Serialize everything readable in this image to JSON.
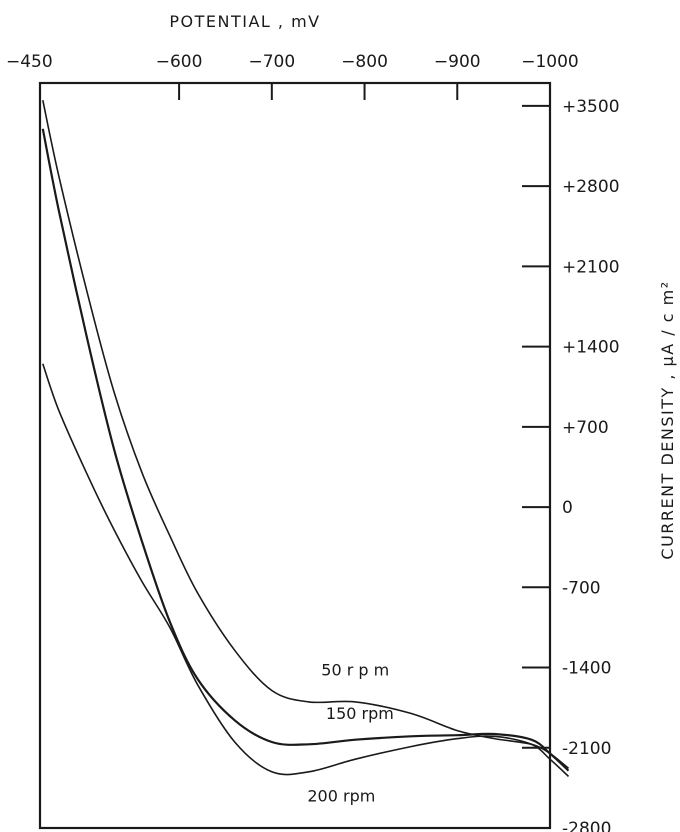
{
  "chart_data": {
    "type": "line",
    "xlabel": "POTENTIAL , mV",
    "ylabel": "CURRENT DENSITY , µA / c m²",
    "x_ticks": [
      {
        "value": -450,
        "label": "−450"
      },
      {
        "value": -600,
        "label": "−600"
      },
      {
        "value": -700,
        "label": "−700"
      },
      {
        "value": -800,
        "label": "−800"
      },
      {
        "value": -900,
        "label": "−900"
      },
      {
        "value": -1000,
        "label": "−1000"
      }
    ],
    "y_ticks": [
      {
        "value": 3500,
        "label": "+3500"
      },
      {
        "value": 2800,
        "label": "+2800"
      },
      {
        "value": 2100,
        "label": "+2100"
      },
      {
        "value": 1400,
        "label": "+1400"
      },
      {
        "value": 700,
        "label": "+700"
      },
      {
        "value": 0,
        "label": "0"
      },
      {
        "value": -700,
        "label": "-700"
      },
      {
        "value": -1400,
        "label": "-1400"
      },
      {
        "value": -2100,
        "label": "-2100"
      },
      {
        "value": -2800,
        "label": "-2800"
      }
    ],
    "xlim": [
      -450,
      -1000
    ],
    "ylim": [
      -2800,
      3700
    ],
    "grid": false,
    "legend": "none",
    "series": [
      {
        "name": "50 rpm",
        "points": [
          [
            -453,
            3550
          ],
          [
            -470,
            2900
          ],
          [
            -500,
            1900
          ],
          [
            -530,
            1000
          ],
          [
            -560,
            300
          ],
          [
            -590,
            -250
          ],
          [
            -620,
            -750
          ],
          [
            -660,
            -1250
          ],
          [
            -700,
            -1600
          ],
          [
            -740,
            -1700
          ],
          [
            -790,
            -1700
          ],
          [
            -850,
            -1800
          ],
          [
            -900,
            -1950
          ],
          [
            -940,
            -2020
          ],
          [
            -980,
            -2070
          ],
          [
            -1000,
            -2150
          ],
          [
            -1020,
            -2280
          ]
        ]
      },
      {
        "name": "150 rpm",
        "points": [
          [
            -453,
            3300
          ],
          [
            -470,
            2600
          ],
          [
            -500,
            1500
          ],
          [
            -530,
            500
          ],
          [
            -560,
            -300
          ],
          [
            -590,
            -1000
          ],
          [
            -620,
            -1500
          ],
          [
            -660,
            -1860
          ],
          [
            -700,
            -2050
          ],
          [
            -740,
            -2070
          ],
          [
            -790,
            -2030
          ],
          [
            -850,
            -2000
          ],
          [
            -900,
            -1990
          ],
          [
            -940,
            -1980
          ],
          [
            -980,
            -2030
          ],
          [
            -1000,
            -2150
          ],
          [
            -1020,
            -2300
          ]
        ]
      },
      {
        "name": "200 rpm",
        "points": [
          [
            -453,
            1250
          ],
          [
            -470,
            850
          ],
          [
            -500,
            300
          ],
          [
            -530,
            -200
          ],
          [
            -560,
            -650
          ],
          [
            -590,
            -1050
          ],
          [
            -620,
            -1550
          ],
          [
            -660,
            -2050
          ],
          [
            -700,
            -2310
          ],
          [
            -740,
            -2310
          ],
          [
            -790,
            -2200
          ],
          [
            -850,
            -2090
          ],
          [
            -900,
            -2020
          ],
          [
            -940,
            -2000
          ],
          [
            -980,
            -2070
          ],
          [
            -1000,
            -2200
          ],
          [
            -1020,
            -2350
          ]
        ]
      }
    ],
    "curve_labels": [
      {
        "series": "50 rpm",
        "text": "50 r p m",
        "x": -790,
        "y": -1470
      },
      {
        "series": "150 rpm",
        "text": "150 rpm",
        "x": -795,
        "y": -1850
      },
      {
        "series": "200 rpm",
        "text": "200 rpm",
        "x": -775,
        "y": -2570
      }
    ]
  }
}
